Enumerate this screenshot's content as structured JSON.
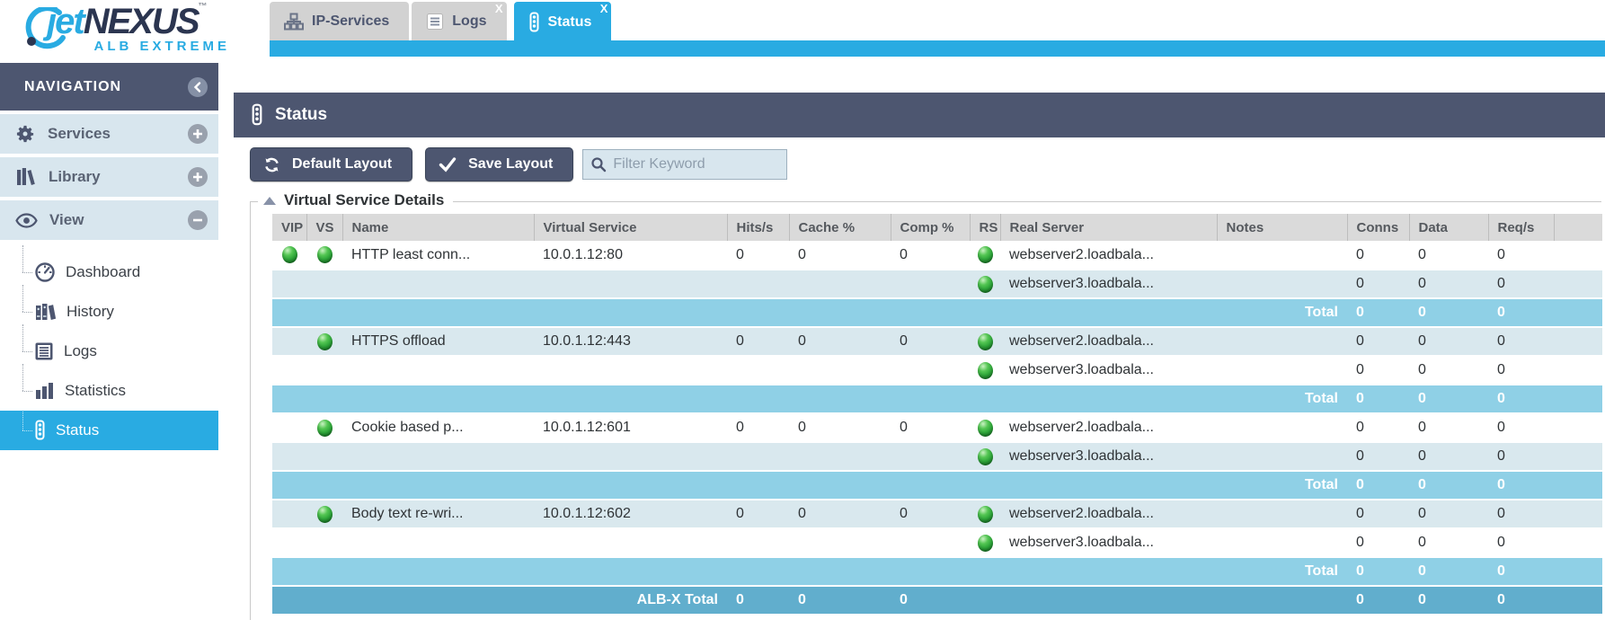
{
  "brand": {
    "jet": "jet",
    "nexus": "NEXUS",
    "tm": "™",
    "subtitle": "ALB EXTREME"
  },
  "tabs": [
    {
      "label": "IP-Services",
      "icon": "sitemap-icon",
      "active": false
    },
    {
      "label": "Logs",
      "icon": "document-icon",
      "active": false,
      "close": "X"
    },
    {
      "label": "Status",
      "icon": "traffic-light-icon",
      "active": true,
      "close": "X"
    }
  ],
  "sidebar": {
    "title": "NAVIGATION",
    "sections": [
      {
        "label": "Services",
        "icon": "gear-icon",
        "toggle": "plus"
      },
      {
        "label": "Library",
        "icon": "library-icon",
        "toggle": "plus"
      },
      {
        "label": "View",
        "icon": "eye-icon",
        "toggle": "minus",
        "children": [
          {
            "label": "Dashboard",
            "icon": "dashboard-icon",
            "active": false
          },
          {
            "label": "History",
            "icon": "history-icon",
            "active": false
          },
          {
            "label": "Logs",
            "icon": "logs-icon",
            "active": false
          },
          {
            "label": "Statistics",
            "icon": "statistics-icon",
            "active": false
          },
          {
            "label": "Status",
            "icon": "status-icon",
            "active": true
          }
        ]
      }
    ]
  },
  "main": {
    "title": "Status",
    "toolbar": {
      "default_layout": "Default Layout",
      "save_layout": "Save Layout",
      "filter_placeholder": "Filter Keyword"
    },
    "panel_title": "Virtual Service Details"
  },
  "table": {
    "columns": [
      "VIP",
      "VS",
      "Name",
      "Virtual Service",
      "Hits/s",
      "Cache %",
      "Comp %",
      "RS",
      "Real Server",
      "Notes",
      "Conns",
      "Data",
      "Req/s"
    ],
    "groups": [
      {
        "vip": true,
        "vs": true,
        "name": "HTTP least conn...",
        "virtual_service": "10.0.1.12:80",
        "hits": "0",
        "cache": "0",
        "comp": "0",
        "row_shades": [
          "white",
          "blue"
        ],
        "servers": [
          {
            "name": "webserver2.loadbala...",
            "notes": "",
            "conns": "0",
            "data": "0",
            "reqs": "0"
          },
          {
            "name": "webserver3.loadbala...",
            "notes": "",
            "conns": "0",
            "data": "0",
            "reqs": "0"
          }
        ],
        "total": {
          "label": "Total",
          "conns": "0",
          "data": "0",
          "reqs": "0"
        }
      },
      {
        "vip": false,
        "vs": true,
        "name": "HTTPS offload",
        "virtual_service": "10.0.1.12:443",
        "hits": "0",
        "cache": "0",
        "comp": "0",
        "row_shades": [
          "blue",
          "white"
        ],
        "servers": [
          {
            "name": "webserver2.loadbala...",
            "notes": "",
            "conns": "0",
            "data": "0",
            "reqs": "0"
          },
          {
            "name": "webserver3.loadbala...",
            "notes": "",
            "conns": "0",
            "data": "0",
            "reqs": "0"
          }
        ],
        "total": {
          "label": "Total",
          "conns": "0",
          "data": "0",
          "reqs": "0"
        }
      },
      {
        "vip": false,
        "vs": true,
        "name": "Cookie based p...",
        "virtual_service": "10.0.1.12:601",
        "hits": "0",
        "cache": "0",
        "comp": "0",
        "row_shades": [
          "white",
          "blue"
        ],
        "servers": [
          {
            "name": "webserver2.loadbala...",
            "notes": "",
            "conns": "0",
            "data": "0",
            "reqs": "0"
          },
          {
            "name": "webserver3.loadbala...",
            "notes": "",
            "conns": "0",
            "data": "0",
            "reqs": "0"
          }
        ],
        "total": {
          "label": "Total",
          "conns": "0",
          "data": "0",
          "reqs": "0"
        }
      },
      {
        "vip": false,
        "vs": true,
        "name": "Body text re-wri...",
        "virtual_service": "10.0.1.12:602",
        "hits": "0",
        "cache": "0",
        "comp": "0",
        "row_shades": [
          "blue",
          "white"
        ],
        "servers": [
          {
            "name": "webserver2.loadbala...",
            "notes": "",
            "conns": "0",
            "data": "0",
            "reqs": "0"
          },
          {
            "name": "webserver3.loadbala...",
            "notes": "",
            "conns": "0",
            "data": "0",
            "reqs": "0"
          }
        ],
        "total": {
          "label": "Total",
          "conns": "0",
          "data": "0",
          "reqs": "0"
        }
      }
    ],
    "grand_total": {
      "label": "ALB-X Total",
      "hits": "0",
      "cache": "0",
      "comp": "0",
      "conns": "0",
      "data": "0",
      "reqs": "0"
    }
  },
  "colors": {
    "accent_cyan": "#29abe2",
    "slate": "#4d5670",
    "row_blue": "#d9e8ee",
    "total_blue": "#8fd0e6",
    "grand_blue": "#61aecd",
    "orb_green": "#2fa73a"
  }
}
